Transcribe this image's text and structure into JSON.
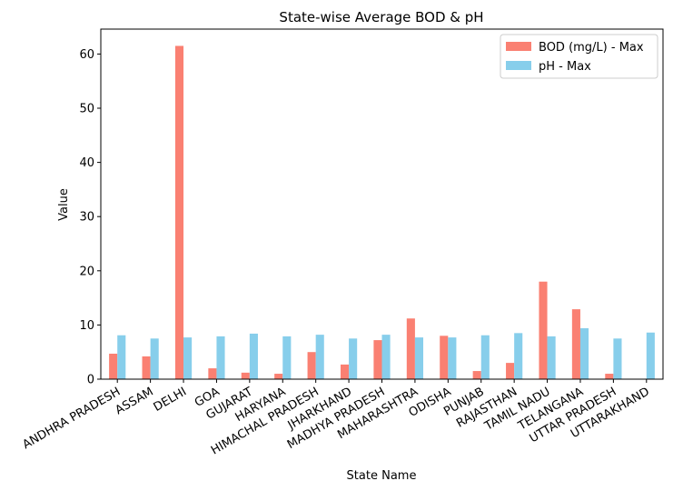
{
  "colors": {
    "bod": "#fa8072",
    "ph": "#87ceeb",
    "axis": "#000000",
    "legend_border": "#cccccc"
  },
  "chart_data": {
    "type": "bar",
    "title": "State-wise Average BOD & pH",
    "xlabel": "State Name",
    "ylabel": "Value",
    "ylim": [
      0,
      64.6
    ],
    "yticks": [
      0,
      10,
      20,
      30,
      40,
      50,
      60
    ],
    "grid": false,
    "legend_position": "top-right",
    "categories": [
      "ANDHRA PRADESH",
      "ASSAM",
      "DELHI",
      "GOA",
      "GUJARAT",
      "HARYANA",
      "HIMACHAL PRADESH",
      "JHARKHAND",
      "MADHYA PRADESH",
      "MAHARASHTRA",
      "ODISHA",
      "PUNJAB",
      "RAJASTHAN",
      "TAMIL NADU",
      "TELANGANA",
      "UTTAR PRADESH",
      "UTTARAKHAND"
    ],
    "series": [
      {
        "name": "BOD (mg/L) - Max",
        "color": "#fa8072",
        "values": [
          4.7,
          4.2,
          61.5,
          2.0,
          1.2,
          1.0,
          5.0,
          2.7,
          7.2,
          11.2,
          8.0,
          1.5,
          3.0,
          18.0,
          12.9,
          1.0,
          0.0
        ]
      },
      {
        "name": "pH - Max",
        "color": "#87ceeb",
        "values": [
          8.1,
          7.5,
          7.7,
          7.9,
          8.4,
          7.9,
          8.2,
          7.5,
          8.2,
          7.7,
          7.7,
          8.1,
          8.5,
          7.9,
          9.4,
          7.5,
          8.6
        ]
      }
    ]
  }
}
